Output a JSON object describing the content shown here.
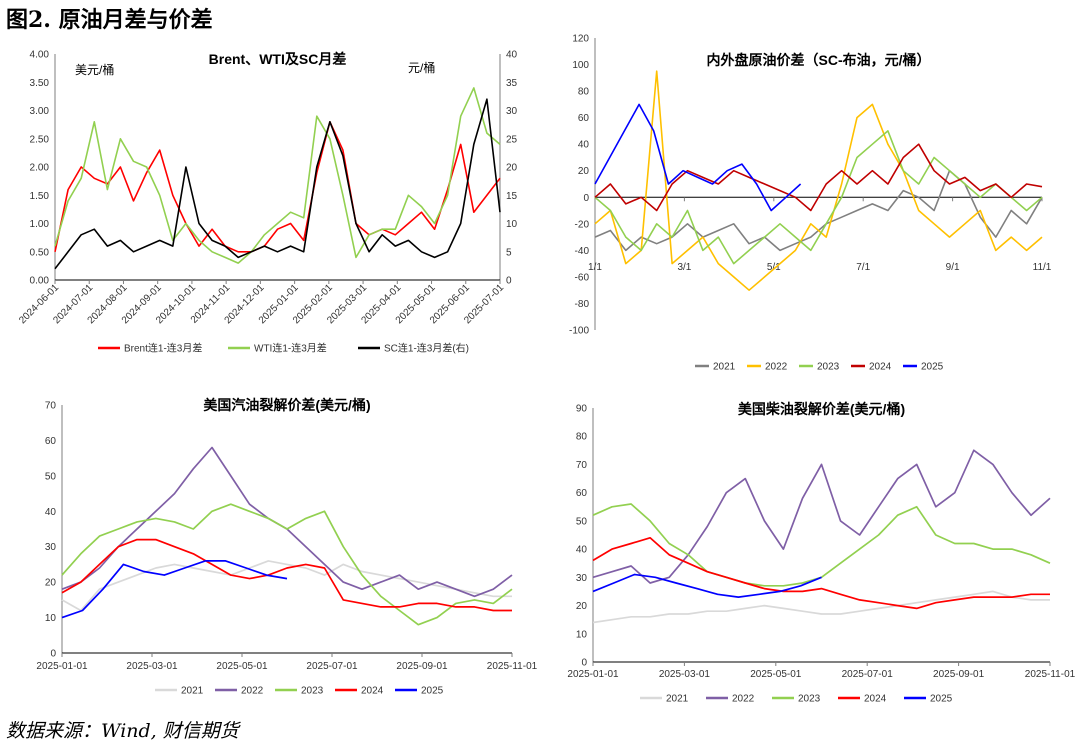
{
  "page": {
    "title": "图2. 原油月差与价差",
    "source": "数据来源：Wind, 财信期货"
  },
  "chart_data": [
    {
      "id": "c1",
      "type": "line",
      "title": "Brent、WTI及SC月差",
      "ylabel_left": "美元/桶",
      "ylabel_right": "元/桶",
      "x_labels": [
        "2024-06-01",
        "2024-07-01",
        "2024-08-01",
        "2024-09-01",
        "2024-10-01",
        "2024-11-01",
        "2024-12-01",
        "2025-01-01",
        "2025-02-01",
        "2025-03-01",
        "2025-04-01",
        "2025-05-01",
        "2025-06-01",
        "2025-07-01"
      ],
      "ylim_left": [
        0,
        4
      ],
      "yticks_left": [
        "0.00",
        "0.50",
        "1.00",
        "1.50",
        "2.00",
        "2.50",
        "3.00",
        "3.50",
        "4.00"
      ],
      "ylim_right": [
        0,
        40
      ],
      "yticks_right": [
        "0",
        "5",
        "10",
        "15",
        "20",
        "25",
        "30",
        "35",
        "40"
      ],
      "legend_position": "bottom",
      "series": [
        {
          "name": "Brent连1-连3月差",
          "color": "#ff0000",
          "axis": "left",
          "values": [
            0.5,
            1.6,
            2.0,
            1.8,
            1.7,
            2.0,
            1.4,
            1.9,
            2.3,
            1.5,
            1.0,
            0.6,
            0.9,
            0.6,
            0.5,
            0.5,
            0.6,
            0.9,
            1.0,
            0.7,
            1.9,
            2.8,
            2.3,
            1.0,
            0.8,
            0.9,
            0.8,
            1.0,
            1.2,
            0.9,
            1.6,
            2.4,
            1.2,
            1.5,
            1.8
          ]
        },
        {
          "name": "WTI连1-连3月差",
          "color": "#92d050",
          "axis": "left",
          "values": [
            0.6,
            1.4,
            1.8,
            2.8,
            1.6,
            2.5,
            2.1,
            2.0,
            1.5,
            0.7,
            1.0,
            0.7,
            0.5,
            0.4,
            0.3,
            0.5,
            0.8,
            1.0,
            1.2,
            1.1,
            2.9,
            2.5,
            1.5,
            0.4,
            0.8,
            0.9,
            0.9,
            1.5,
            1.3,
            1.0,
            1.5,
            2.9,
            3.4,
            2.6,
            2.4
          ]
        },
        {
          "name": "SC连1-连3月差(右)",
          "color": "#000000",
          "axis": "right",
          "values": [
            2,
            5,
            8,
            9,
            6,
            7,
            5,
            6,
            7,
            6,
            20,
            10,
            7,
            6,
            4,
            5,
            6,
            5,
            6,
            5,
            20,
            28,
            22,
            10,
            5,
            8,
            6,
            7,
            5,
            4,
            5,
            10,
            24,
            32,
            12
          ]
        }
      ]
    },
    {
      "id": "c2",
      "type": "line",
      "title": "内外盘原油价差（SC-布油，元/桶）",
      "x_labels": [
        "1/1",
        "3/1",
        "5/1",
        "7/1",
        "9/1",
        "11/1"
      ],
      "ylim": [
        -100,
        120
      ],
      "yticks": [
        "-100",
        "-80",
        "-60",
        "-40",
        "-20",
        "0",
        "20",
        "40",
        "60",
        "80",
        "100",
        "120"
      ],
      "legend_position": "bottom",
      "series": [
        {
          "name": "2021",
          "color": "#808080",
          "values": [
            -30,
            -25,
            -40,
            -30,
            -35,
            -30,
            -20,
            -30,
            -25,
            -20,
            -35,
            -30,
            -40,
            -35,
            -30,
            -20,
            -15,
            -10,
            -5,
            -10,
            5,
            0,
            -10,
            20,
            10,
            -15,
            -30,
            -10,
            -20,
            0
          ]
        },
        {
          "name": "2022",
          "color": "#ffc000",
          "values": [
            -20,
            -10,
            -50,
            -40,
            95,
            -50,
            -40,
            -30,
            -50,
            -60,
            -70,
            -60,
            -50,
            -40,
            -20,
            -30,
            10,
            60,
            70,
            40,
            20,
            -10,
            -20,
            -30,
            -20,
            -10,
            -40,
            -30,
            -40,
            -30
          ]
        },
        {
          "name": "2023",
          "color": "#92d050",
          "values": [
            0,
            -10,
            -30,
            -40,
            -20,
            -30,
            -10,
            -40,
            -30,
            -50,
            -40,
            -30,
            -20,
            -30,
            -40,
            -20,
            0,
            30,
            40,
            50,
            20,
            10,
            30,
            20,
            10,
            0,
            10,
            0,
            -10,
            0
          ]
        },
        {
          "name": "2024",
          "color": "#c00000",
          "values": [
            0,
            10,
            -5,
            0,
            -10,
            10,
            20,
            15,
            10,
            20,
            15,
            10,
            5,
            0,
            -10,
            10,
            20,
            10,
            20,
            10,
            30,
            40,
            20,
            10,
            15,
            5,
            10,
            0,
            10,
            8
          ]
        },
        {
          "name": "2025",
          "color": "#0000ff",
          "values": [
            10,
            30,
            50,
            70,
            50,
            10,
            20,
            15,
            10,
            20,
            25,
            10,
            -10,
            0,
            10
          ]
        }
      ]
    },
    {
      "id": "c3",
      "type": "line",
      "title": "美国汽油裂解价差(美元/桶)",
      "x_labels": [
        "2025-01-01",
        "2025-03-01",
        "2025-05-01",
        "2025-07-01",
        "2025-09-01",
        "2025-11-01"
      ],
      "ylim": [
        0,
        70
      ],
      "yticks": [
        "0",
        "10",
        "20",
        "30",
        "40",
        "50",
        "60",
        "70"
      ],
      "legend_position": "bottom",
      "series": [
        {
          "name": "2021",
          "color": "#d9d9d9",
          "values": [
            15,
            12,
            18,
            20,
            22,
            24,
            25,
            24,
            23,
            22,
            24,
            26,
            25,
            24,
            22,
            25,
            23,
            22,
            21,
            20,
            19,
            18,
            17,
            16,
            16
          ]
        },
        {
          "name": "2022",
          "color": "#7f5fa6",
          "values": [
            18,
            20,
            24,
            30,
            35,
            40,
            45,
            52,
            58,
            50,
            42,
            38,
            35,
            30,
            25,
            20,
            18,
            20,
            22,
            18,
            20,
            18,
            16,
            18,
            22
          ]
        },
        {
          "name": "2023",
          "color": "#92d050",
          "values": [
            22,
            28,
            33,
            35,
            37,
            38,
            37,
            35,
            40,
            42,
            40,
            38,
            35,
            38,
            40,
            30,
            22,
            16,
            12,
            8,
            10,
            14,
            15,
            14,
            18
          ]
        },
        {
          "name": "2024",
          "color": "#ff0000",
          "values": [
            17,
            20,
            25,
            30,
            32,
            32,
            30,
            28,
            25,
            22,
            21,
            22,
            24,
            25,
            24,
            15,
            14,
            13,
            13,
            14,
            14,
            13,
            13,
            12,
            12
          ]
        },
        {
          "name": "2025",
          "color": "#0000ff",
          "values": [
            10,
            12,
            18,
            25,
            23,
            22,
            24,
            26,
            26,
            24,
            22,
            21
          ]
        }
      ]
    },
    {
      "id": "c4",
      "type": "line",
      "title": "美国柴油裂解价差(美元/桶)",
      "x_labels": [
        "2025-01-01",
        "2025-03-01",
        "2025-05-01",
        "2025-07-01",
        "2025-09-01",
        "2025-11-01"
      ],
      "ylim": [
        0,
        90
      ],
      "yticks": [
        "0",
        "10",
        "20",
        "30",
        "40",
        "50",
        "60",
        "70",
        "80",
        "90"
      ],
      "legend_position": "bottom",
      "series": [
        {
          "name": "2021",
          "color": "#d9d9d9",
          "values": [
            14,
            15,
            16,
            16,
            17,
            17,
            18,
            18,
            19,
            20,
            19,
            18,
            17,
            17,
            18,
            19,
            20,
            21,
            22,
            23,
            24,
            25,
            23,
            22,
            22
          ]
        },
        {
          "name": "2022",
          "color": "#7f5fa6",
          "values": [
            30,
            32,
            34,
            28,
            30,
            38,
            48,
            60,
            65,
            50,
            40,
            58,
            70,
            50,
            45,
            55,
            65,
            70,
            55,
            60,
            75,
            70,
            60,
            52,
            58
          ]
        },
        {
          "name": "2023",
          "color": "#92d050",
          "values": [
            52,
            55,
            56,
            50,
            42,
            38,
            32,
            30,
            28,
            27,
            27,
            28,
            30,
            35,
            40,
            45,
            52,
            55,
            45,
            42,
            42,
            40,
            40,
            38,
            35
          ]
        },
        {
          "name": "2024",
          "color": "#ff0000",
          "values": [
            36,
            40,
            42,
            44,
            38,
            35,
            32,
            30,
            28,
            26,
            25,
            25,
            26,
            24,
            22,
            21,
            20,
            19,
            21,
            22,
            23,
            23,
            23,
            24,
            24
          ]
        },
        {
          "name": "2025",
          "color": "#0000ff",
          "values": [
            25,
            28,
            31,
            30,
            28,
            26,
            24,
            23,
            24,
            25,
            27,
            30
          ]
        }
      ]
    }
  ]
}
